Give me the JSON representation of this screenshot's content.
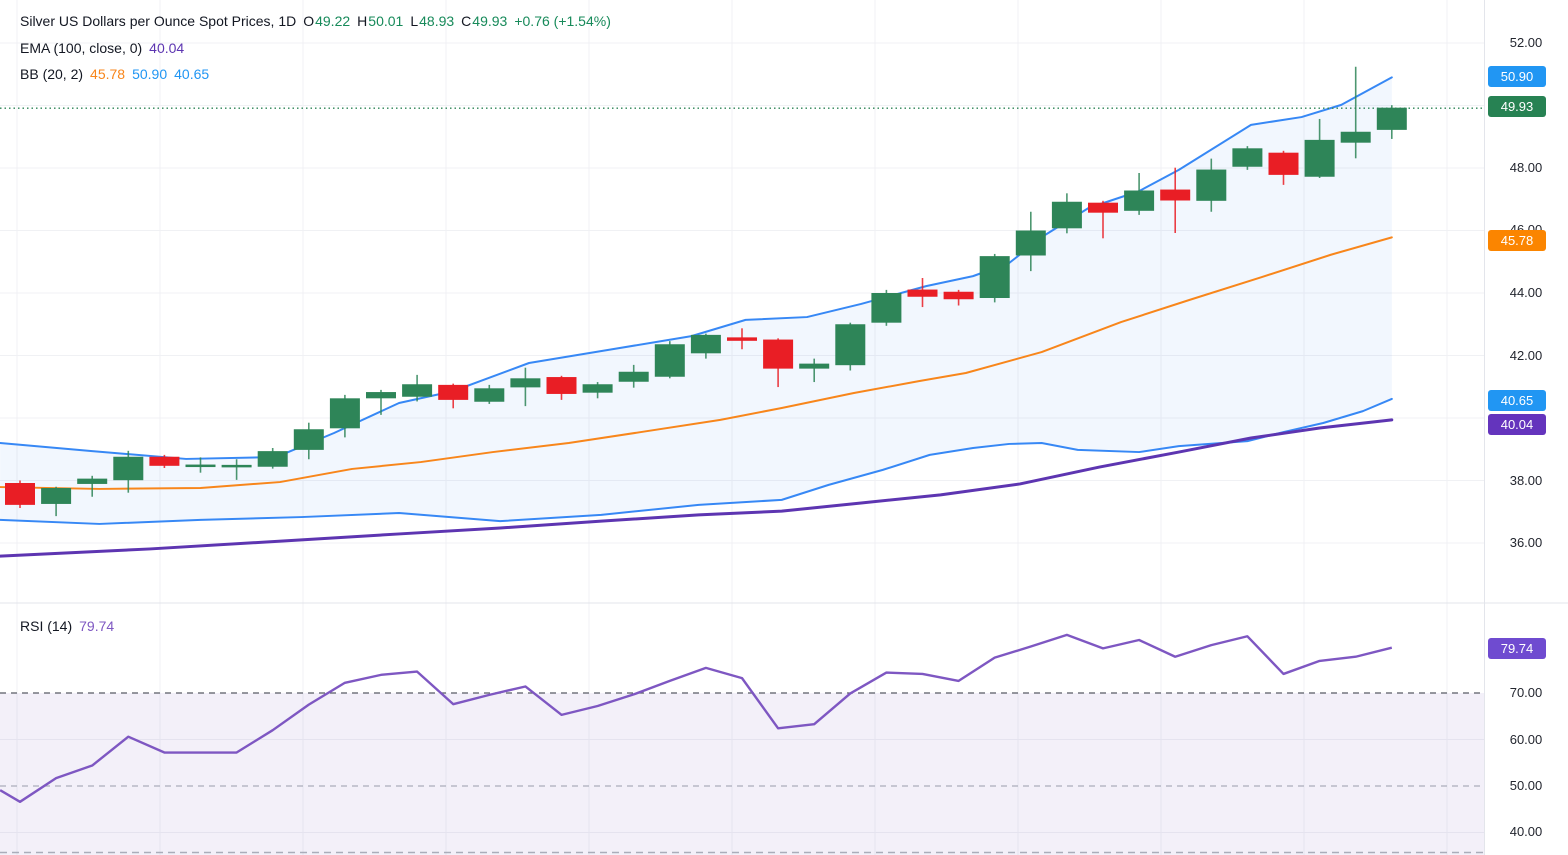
{
  "colors": {
    "green": "#2e8558",
    "red": "#e91e25",
    "bb_blue": "#3788f5",
    "basis_orange": "#f8861b",
    "ema_purple": "#5d35b1",
    "rsi_purple": "#7e57c2",
    "badge_blue": "#2196f3",
    "badge_green": "#278253",
    "badge_orange": "#fb8500",
    "badge_purple": "#6434bd",
    "badge_rsi": "#6f4bd0",
    "legend_green": "#178a5a",
    "text_dark": "#131722",
    "axis_text": "#23262f",
    "grid": "#f0f1f4",
    "dash_dark": "#585b65",
    "dash_light": "#aaadba",
    "separator": "#e3e5eb",
    "dotted_price": "#2c8456"
  },
  "legend": {
    "title": "Silver US Dollars per Ounce Spot Prices, 1D",
    "o_label": "O",
    "o": "49.22",
    "h_label": "H",
    "h": "50.01",
    "l_label": "L",
    "l": "48.93",
    "c_label": "C",
    "c": "49.93",
    "change": "+0.76 (+1.54%)",
    "ema_label": "EMA (100, close, 0)",
    "ema_value": "40.04",
    "bb_label": "BB (20, 2)",
    "bb_basis": "45.78",
    "bb_upper": "50.90",
    "bb_lower": "40.65",
    "rsi_label": "RSI (14)",
    "rsi_value": "79.74"
  },
  "axis": {
    "main_labels": [
      {
        "text": "52.00"
      },
      {
        "text": "48.00"
      },
      {
        "text": "46.00"
      },
      {
        "text": "44.00"
      },
      {
        "text": "42.00"
      },
      {
        "text": "38.00"
      },
      {
        "text": "36.00"
      }
    ],
    "rsi_labels": [
      {
        "text": "70.00"
      },
      {
        "text": "60.00"
      },
      {
        "text": "50.00"
      },
      {
        "text": "40.00"
      }
    ],
    "badges": [
      {
        "text": "50.90"
      },
      {
        "text": "49.93"
      },
      {
        "text": "45.78"
      },
      {
        "text": "40.65"
      },
      {
        "text": "40.04"
      },
      {
        "text": "79.74"
      }
    ]
  },
  "chart_data": [
    {
      "type": "candlestick",
      "title": "Silver US Dollars per Ounce Spot Prices",
      "timeframe": "1D",
      "last_ohlc": {
        "open": 49.22,
        "high": 50.01,
        "low": 48.93,
        "close": 49.93,
        "change": 0.76,
        "change_pct": 1.54
      },
      "ylim": [
        35.2,
        52.4
      ],
      "y_ticks": [
        52,
        50,
        48,
        46,
        44,
        42,
        40,
        38,
        36
      ],
      "grid": true,
      "last_price": 49.93,
      "candles": [
        [
          37.92,
          38.0,
          37.12,
          37.22
        ],
        [
          37.25,
          37.8,
          36.86,
          37.76
        ],
        [
          37.89,
          38.15,
          37.48,
          38.06
        ],
        [
          38.01,
          38.95,
          37.61,
          38.76
        ],
        [
          38.76,
          38.82,
          38.4,
          38.47
        ],
        [
          38.45,
          38.74,
          38.25,
          38.51
        ],
        [
          38.45,
          38.68,
          38.02,
          38.5
        ],
        [
          38.44,
          39.04,
          38.38,
          38.94
        ],
        [
          38.98,
          39.85,
          38.68,
          39.64
        ],
        [
          39.67,
          40.74,
          39.38,
          40.63
        ],
        [
          40.63,
          40.9,
          40.1,
          40.83
        ],
        [
          40.68,
          41.38,
          40.53,
          41.08
        ],
        [
          41.06,
          41.1,
          40.31,
          40.58
        ],
        [
          40.52,
          41.06,
          40.45,
          40.95
        ],
        [
          40.98,
          41.61,
          40.38,
          41.27
        ],
        [
          41.31,
          41.35,
          40.58,
          40.77
        ],
        [
          40.81,
          41.15,
          40.63,
          41.08
        ],
        [
          41.16,
          41.7,
          40.97,
          41.48
        ],
        [
          41.32,
          42.46,
          41.27,
          42.36
        ],
        [
          42.07,
          42.7,
          41.9,
          42.66
        ],
        [
          42.58,
          42.87,
          42.2,
          42.47
        ],
        [
          42.51,
          42.55,
          40.99,
          41.58
        ],
        [
          41.58,
          41.9,
          41.15,
          41.74
        ],
        [
          41.69,
          43.05,
          41.52,
          43.0
        ],
        [
          43.05,
          44.1,
          42.95,
          44.0
        ],
        [
          44.11,
          44.48,
          43.55,
          43.88
        ],
        [
          44.04,
          44.1,
          43.6,
          43.8
        ],
        [
          43.84,
          45.25,
          43.7,
          45.18
        ],
        [
          45.2,
          46.6,
          44.7,
          46.0
        ],
        [
          46.07,
          47.19,
          45.91,
          46.92
        ],
        [
          46.89,
          46.95,
          45.75,
          46.57
        ],
        [
          46.63,
          47.84,
          46.5,
          47.28
        ],
        [
          47.31,
          48.01,
          45.92,
          46.96
        ],
        [
          46.95,
          48.3,
          46.6,
          47.95
        ],
        [
          48.04,
          48.7,
          47.94,
          48.63
        ],
        [
          48.49,
          48.55,
          47.46,
          47.78
        ],
        [
          47.72,
          49.57,
          47.68,
          48.9
        ],
        [
          48.81,
          51.24,
          48.31,
          49.16
        ],
        [
          49.22,
          50.01,
          48.93,
          49.93
        ]
      ],
      "overlays": [
        {
          "name": "BB upper (20,2)",
          "color_key": "bb_blue",
          "width": 2,
          "last": 50.9,
          "points": [
            [
              -0.55,
              39.2
            ],
            [
              2.0,
              38.94
            ],
            [
              4.6,
              38.69
            ],
            [
              7.1,
              38.75
            ],
            [
              8.7,
              39.52
            ],
            [
              10.5,
              40.48
            ],
            [
              12.0,
              40.86
            ],
            [
              14.1,
              41.76
            ],
            [
              16.3,
              42.18
            ],
            [
              18.6,
              42.62
            ],
            [
              20.1,
              43.14
            ],
            [
              21.8,
              43.23
            ],
            [
              23.3,
              43.65
            ],
            [
              25.1,
              44.22
            ],
            [
              26.4,
              44.54
            ],
            [
              27.4,
              44.96
            ],
            [
              28.4,
              45.86
            ],
            [
              29.6,
              46.72
            ],
            [
              31.0,
              47.26
            ],
            [
              32.1,
              47.94
            ],
            [
              34.1,
              49.38
            ],
            [
              35.5,
              49.63
            ],
            [
              36.6,
              50.02
            ],
            [
              38.0,
              50.9
            ]
          ]
        },
        {
          "name": "BB basis (20,2)",
          "color_key": "basis_orange",
          "width": 2,
          "last": 45.78,
          "points": [
            [
              -0.55,
              37.79
            ],
            [
              2.2,
              37.73
            ],
            [
              5.0,
              37.76
            ],
            [
              7.2,
              37.95
            ],
            [
              9.2,
              38.37
            ],
            [
              11.1,
              38.59
            ],
            [
              13.1,
              38.91
            ],
            [
              15.2,
              39.2
            ],
            [
              17.2,
              39.55
            ],
            [
              19.4,
              39.94
            ],
            [
              21.1,
              40.32
            ],
            [
              23.1,
              40.8
            ],
            [
              24.9,
              41.18
            ],
            [
              26.2,
              41.44
            ],
            [
              28.3,
              42.11
            ],
            [
              30.5,
              43.07
            ],
            [
              32.4,
              43.78
            ],
            [
              34.4,
              44.51
            ],
            [
              36.3,
              45.22
            ],
            [
              38.0,
              45.78
            ]
          ]
        },
        {
          "name": "BB lower (20,2)",
          "color_key": "bb_blue",
          "width": 2,
          "last": 40.65,
          "points": [
            [
              -0.55,
              36.74
            ],
            [
              2.2,
              36.61
            ],
            [
              5.0,
              36.74
            ],
            [
              7.8,
              36.83
            ],
            [
              10.5,
              36.96
            ],
            [
              13.3,
              36.7
            ],
            [
              16.1,
              36.9
            ],
            [
              18.8,
              37.22
            ],
            [
              21.1,
              37.38
            ],
            [
              22.4,
              37.86
            ],
            [
              23.9,
              38.34
            ],
            [
              25.2,
              38.82
            ],
            [
              26.4,
              39.04
            ],
            [
              27.4,
              39.17
            ],
            [
              28.3,
              39.2
            ],
            [
              29.3,
              38.98
            ],
            [
              31.0,
              38.91
            ],
            [
              32.1,
              39.1
            ],
            [
              34.0,
              39.26
            ],
            [
              35.0,
              39.55
            ],
            [
              36.1,
              39.84
            ],
            [
              37.2,
              40.22
            ],
            [
              38.0,
              40.61
            ]
          ]
        },
        {
          "name": "EMA 100",
          "color_key": "ema_purple",
          "width": 3,
          "last": 40.04,
          "points": [
            [
              -0.55,
              35.58
            ],
            [
              3.6,
              35.81
            ],
            [
              7.8,
              36.1
            ],
            [
              10.5,
              36.29
            ],
            [
              13.3,
              36.48
            ],
            [
              16.1,
              36.7
            ],
            [
              18.8,
              36.9
            ],
            [
              21.1,
              37.02
            ],
            [
              23.3,
              37.28
            ],
            [
              25.5,
              37.54
            ],
            [
              27.7,
              37.89
            ],
            [
              29.9,
              38.43
            ],
            [
              32.1,
              38.91
            ],
            [
              34.1,
              39.36
            ],
            [
              36.0,
              39.68
            ],
            [
              38.0,
              39.94
            ]
          ]
        }
      ],
      "band_fill_between": [
        "BB upper (20,2)",
        "BB lower (20,2)"
      ]
    },
    {
      "type": "line",
      "title": "RSI (14)",
      "ylim_visible": [
        35.2,
        89.4
      ],
      "y_ticks": [
        70,
        60,
        50,
        40
      ],
      "levels": [
        {
          "value": 70,
          "style": "dashed"
        },
        {
          "value": 50,
          "style": "dashed"
        }
      ],
      "band": [
        30,
        70
      ],
      "last_value": 79.74,
      "lead_in": [
        [
          -0.55,
          49.1
        ]
      ],
      "values": [
        46.6,
        51.7,
        54.4,
        60.6,
        57.2,
        57.2,
        57.2,
        62.0,
        67.5,
        72.2,
        73.9,
        74.6,
        67.6,
        69.6,
        71.4,
        65.3,
        67.2,
        69.7,
        72.6,
        75.4,
        73.2,
        62.4,
        63.3,
        69.9,
        74.4,
        74.1,
        72.6,
        77.6,
        80.0,
        82.5,
        79.6,
        81.4,
        77.8,
        80.3,
        82.2,
        74.1,
        76.9,
        77.8,
        79.74
      ]
    }
  ]
}
